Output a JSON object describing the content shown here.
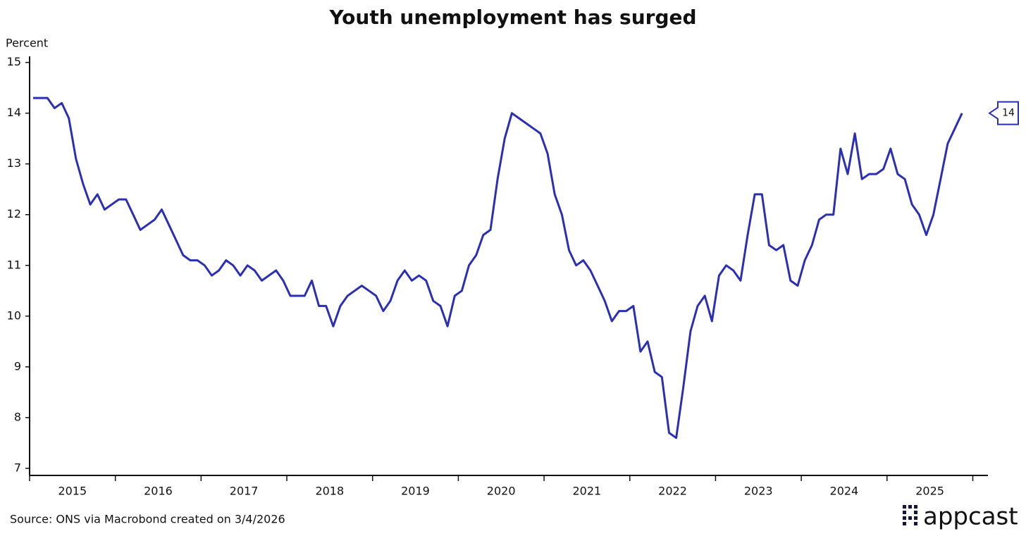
{
  "chart_data": {
    "type": "line",
    "title": "Youth unemployment has surged",
    "y_label": "Percent",
    "source": "Source: ONS via Macrobond created on 3/4/2026",
    "logo": "appcast",
    "color": "#2a2fb5",
    "categories": [
      null,
      null,
      null,
      null,
      null,
      "2015",
      null,
      null,
      null,
      null,
      null,
      null,
      null,
      null,
      null,
      null,
      null,
      "2016",
      null,
      null,
      null,
      null,
      null,
      null,
      null,
      null,
      null,
      null,
      null,
      "2017",
      null,
      null,
      null,
      null,
      null,
      null,
      null,
      null,
      null,
      null,
      null,
      "2018",
      null,
      null,
      null,
      null,
      null,
      null,
      null,
      null,
      null,
      null,
      null,
      "2019",
      null,
      null,
      null,
      null,
      null,
      null,
      null,
      null,
      null,
      null,
      null,
      "2020",
      null,
      null,
      null,
      null,
      null,
      null,
      null,
      null,
      null,
      null,
      null,
      "2021",
      null,
      null,
      null,
      null,
      null,
      null,
      null,
      null,
      null,
      null,
      null,
      "2022",
      null,
      null,
      null,
      null,
      null,
      null,
      null,
      null,
      null,
      null,
      null,
      "2023",
      null,
      null,
      null,
      null,
      null,
      null,
      null,
      null,
      null,
      null,
      null,
      "2024",
      null,
      null,
      null,
      null,
      null,
      null,
      null,
      null,
      null,
      null,
      null,
      "2025",
      null,
      null,
      null,
      null,
      null
    ],
    "values": [
      14.3,
      14.3,
      14.3,
      14.1,
      14.2,
      13.9,
      13.1,
      12.6,
      12.2,
      12.4,
      12.1,
      12.2,
      12.3,
      12.3,
      12.0,
      11.7,
      11.8,
      11.9,
      12.1,
      11.8,
      11.5,
      11.2,
      11.1,
      11.1,
      11.0,
      10.8,
      10.9,
      11.1,
      11.0,
      10.8,
      11.0,
      10.9,
      10.7,
      10.8,
      10.9,
      10.7,
      10.4,
      10.4,
      10.4,
      10.7,
      10.2,
      10.2,
      9.8,
      10.2,
      10.4,
      10.5,
      10.6,
      10.5,
      10.4,
      10.1,
      10.3,
      10.7,
      10.9,
      10.7,
      10.8,
      10.7,
      10.3,
      10.2,
      9.8,
      10.4,
      10.5,
      11.0,
      11.2,
      11.6,
      11.7,
      12.7,
      13.5,
      14.0,
      13.9,
      13.8,
      13.7,
      13.6,
      13.2,
      12.4,
      12.0,
      11.3,
      11.0,
      11.1,
      10.9,
      10.6,
      10.3,
      9.9,
      10.1,
      10.1,
      10.2,
      9.3,
      9.5,
      8.9,
      8.8,
      7.7,
      7.6,
      8.6,
      9.7,
      10.2,
      10.4,
      9.9,
      10.8,
      11.0,
      10.9,
      10.7,
      11.6,
      12.4,
      12.4,
      11.4,
      11.3,
      11.4,
      10.7,
      10.6,
      11.1,
      11.4,
      11.9,
      12.0,
      12.0,
      13.3,
      12.8,
      13.6,
      12.7,
      12.8,
      12.8,
      12.9,
      13.3,
      12.8,
      12.7,
      12.2,
      12.0,
      11.6,
      12.0,
      12.7,
      13.4,
      13.7,
      14.0
    ],
    "ylim": [
      6.86,
      15.12
    ],
    "yticks": [
      7,
      8,
      9,
      10,
      11,
      12,
      13,
      14,
      15
    ]
  }
}
